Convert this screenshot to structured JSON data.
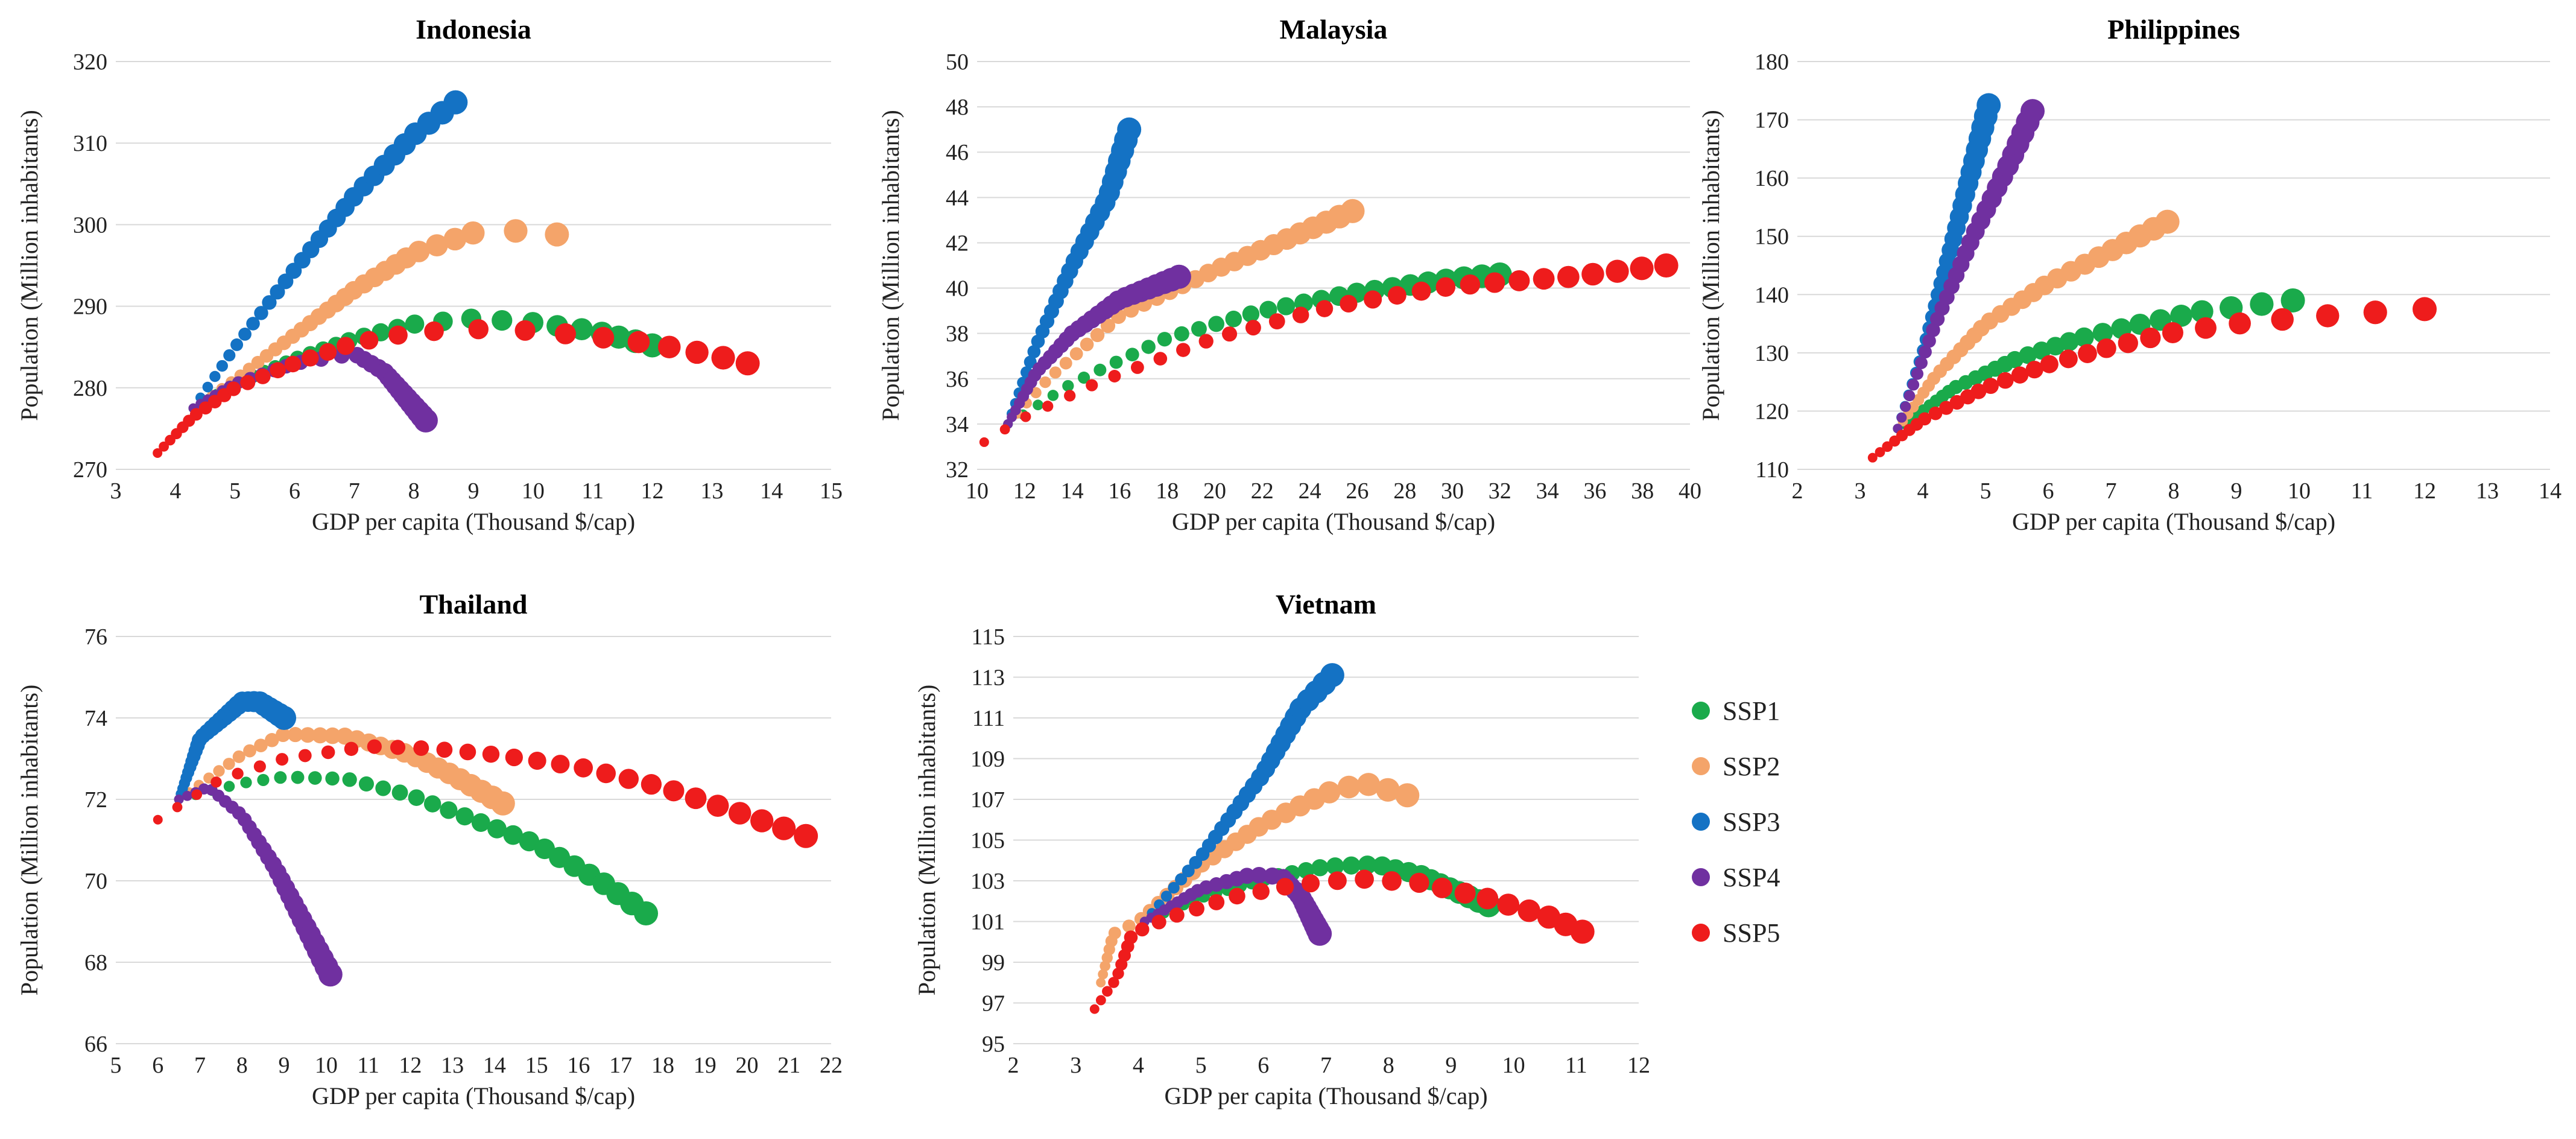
{
  "figure": {
    "series_names": [
      "SSP1",
      "SSP2",
      "SSP3",
      "SSP4",
      "SSP5"
    ],
    "colors": {
      "SSP1": "#1aaa4b",
      "SSP2": "#f4a46a",
      "SSP3": "#1472c4",
      "SSP4": "#7030a0",
      "SSP5": "#ee1c1c"
    }
  },
  "chart_data": [
    {
      "type": "scatter",
      "title": "Indonesia",
      "xlabel": "GDP per capita (Thousand $/cap)",
      "ylabel": "Population (Million inhabitants)",
      "xlim": [
        3,
        15
      ],
      "xticks": [
        3,
        4,
        5,
        6,
        7,
        8,
        9,
        10,
        11,
        12,
        13,
        14,
        15
      ],
      "ylim": [
        270,
        320
      ],
      "yticks": [
        270,
        280,
        290,
        300,
        310,
        320
      ],
      "series": [
        {
          "name": "SSP1",
          "start": [
            4.3,
            277.5
          ],
          "points": [
            [
              4.3,
              277.5
            ],
            [
              5,
              280.5
            ],
            [
              6,
              283.5
            ],
            [
              7,
              286
            ],
            [
              8,
              287.8
            ],
            [
              9,
              288.5
            ],
            [
              10,
              288
            ],
            [
              11,
              287
            ],
            [
              12,
              285.2
            ]
          ]
        },
        {
          "name": "SSP2",
          "start": [
            4.3,
            277.5
          ],
          "points": [
            [
              4.3,
              277.5
            ],
            [
              5,
              281
            ],
            [
              6,
              286.5
            ],
            [
              7,
              292
            ],
            [
              8,
              296.5
            ],
            [
              9,
              299
            ],
            [
              9.6,
              299.3
            ],
            [
              10.4,
              298.8
            ]
          ]
        },
        {
          "name": "SSP3",
          "start": [
            4.3,
            277.5
          ],
          "points": [
            [
              4.3,
              277.5
            ],
            [
              5,
              285
            ],
            [
              6,
              294.5
            ],
            [
              7,
              303.5
            ],
            [
              8,
              311
            ],
            [
              8.7,
              315
            ]
          ]
        },
        {
          "name": "SSP4",
          "start": [
            4.3,
            277.5
          ],
          "points": [
            [
              4.3,
              277.5
            ],
            [
              5,
              280.5
            ],
            [
              6,
              283
            ],
            [
              7,
              284.2
            ],
            [
              7.5,
              282
            ],
            [
              8.2,
              276
            ]
          ]
        },
        {
          "name": "SSP5",
          "start": [
            3.7,
            272
          ],
          "points": [
            [
              3.7,
              272
            ],
            [
              4.3,
              276.5
            ],
            [
              5,
              280
            ],
            [
              6,
              283
            ],
            [
              7,
              285.5
            ],
            [
              8,
              286.8
            ],
            [
              9,
              287.2
            ],
            [
              10,
              287
            ],
            [
              11,
              286.3
            ],
            [
              12,
              285.4
            ],
            [
              13,
              284
            ],
            [
              13.6,
              283
            ]
          ]
        }
      ]
    },
    {
      "type": "scatter",
      "title": "Malaysia",
      "xlabel": "GDP per capita (Thousand $/cap)",
      "ylabel": "Population (Million inhabitants)",
      "xlim": [
        10,
        40
      ],
      "xticks": [
        10,
        12,
        14,
        16,
        18,
        20,
        22,
        24,
        26,
        28,
        30,
        32,
        34,
        36,
        38,
        40
      ],
      "ylim": [
        32,
        50
      ],
      "yticks": [
        32,
        34,
        36,
        38,
        40,
        42,
        44,
        46,
        48,
        50
      ],
      "series": [
        {
          "name": "SSP1",
          "start": [
            11.3,
            34
          ],
          "points": [
            [
              11.3,
              34
            ],
            [
              14,
              35.8
            ],
            [
              18,
              37.8
            ],
            [
              22,
              39
            ],
            [
              26,
              39.8
            ],
            [
              30,
              40.4
            ],
            [
              32,
              40.6
            ]
          ]
        },
        {
          "name": "SSP2",
          "start": [
            11.3,
            34
          ],
          "points": [
            [
              11.3,
              34
            ],
            [
              13,
              36
            ],
            [
              16,
              38.8
            ],
            [
              20,
              40.8
            ],
            [
              24,
              42.6
            ],
            [
              25.8,
              43.4
            ]
          ]
        },
        {
          "name": "SSP3",
          "start": [
            11.3,
            34
          ],
          "points": [
            [
              11.3,
              34
            ],
            [
              12.5,
              37.5
            ],
            [
              14,
              41
            ],
            [
              15.5,
              44
            ],
            [
              16.4,
              47
            ]
          ]
        },
        {
          "name": "SSP4",
          "start": [
            11.3,
            34
          ],
          "points": [
            [
              11.3,
              34
            ],
            [
              12.5,
              36.3
            ],
            [
              14,
              38
            ],
            [
              16,
              39.5
            ],
            [
              18.5,
              40.5
            ]
          ]
        },
        {
          "name": "SSP5",
          "start": [
            10.3,
            33.2
          ],
          "points": [
            [
              10.3,
              33.2
            ],
            [
              12,
              34.3
            ],
            [
              15,
              35.8
            ],
            [
              20,
              37.8
            ],
            [
              25,
              39.2
            ],
            [
              30,
              40.1
            ],
            [
              35,
              40.5
            ],
            [
              39,
              41
            ]
          ]
        }
      ]
    },
    {
      "type": "scatter",
      "title": "Philippines",
      "xlabel": "GDP per capita (Thousand $/cap)",
      "ylabel": "Population (Million inhabitants)",
      "xlim": [
        2,
        14
      ],
      "xticks": [
        2,
        3,
        4,
        5,
        6,
        7,
        8,
        9,
        10,
        11,
        12,
        13,
        14
      ],
      "ylim": [
        110,
        180
      ],
      "yticks": [
        110,
        120,
        130,
        140,
        150,
        160,
        170,
        180
      ],
      "series": [
        {
          "name": "SSP1",
          "start": [
            3.6,
            117
          ],
          "points": [
            [
              3.6,
              117
            ],
            [
              4.5,
              124
            ],
            [
              5.5,
              129
            ],
            [
              6.5,
              132.5
            ],
            [
              7.5,
              135
            ],
            [
              8.5,
              137.2
            ],
            [
              9.5,
              138.5
            ],
            [
              9.9,
              139
            ]
          ]
        },
        {
          "name": "SSP2",
          "start": [
            3.6,
            117
          ],
          "points": [
            [
              3.6,
              117
            ],
            [
              4.2,
              126
            ],
            [
              5,
              135
            ],
            [
              6,
              142
            ],
            [
              7,
              147.5
            ],
            [
              7.9,
              152.5
            ]
          ]
        },
        {
          "name": "SSP3",
          "start": [
            3.6,
            117
          ],
          "points": [
            [
              3.6,
              117
            ],
            [
              4,
              130
            ],
            [
              4.5,
              150
            ],
            [
              5.05,
              172.5
            ]
          ]
        },
        {
          "name": "SSP4",
          "start": [
            3.6,
            117
          ],
          "points": [
            [
              3.6,
              117
            ],
            [
              4.2,
              135
            ],
            [
              4.8,
              150
            ],
            [
              5.4,
              163
            ],
            [
              5.75,
              171.5
            ]
          ]
        },
        {
          "name": "SSP5",
          "start": [
            3.2,
            112
          ],
          "points": [
            [
              3.2,
              112
            ],
            [
              4,
              118.5
            ],
            [
              5,
              124
            ],
            [
              6,
              128
            ],
            [
              7,
              131
            ],
            [
              8,
              133.5
            ],
            [
              9,
              135
            ],
            [
              10,
              136
            ],
            [
              11,
              136.8
            ],
            [
              12,
              137.5
            ]
          ]
        }
      ]
    },
    {
      "type": "scatter",
      "title": "Thailand",
      "xlabel": "GDP per capita (Thousand $/cap)",
      "ylabel": "Population (Million inhabitants)",
      "xlim": [
        5,
        22
      ],
      "xticks": [
        5,
        6,
        7,
        8,
        9,
        10,
        11,
        12,
        13,
        14,
        15,
        16,
        17,
        18,
        19,
        20,
        21,
        22
      ],
      "ylim": [
        66,
        76
      ],
      "yticks": [
        66,
        68,
        70,
        72,
        74,
        76
      ],
      "series": [
        {
          "name": "SSP1",
          "start": [
            6.5,
            72
          ],
          "points": [
            [
              6.5,
              72
            ],
            [
              8,
              72.4
            ],
            [
              9,
              72.55
            ],
            [
              10.5,
              72.5
            ],
            [
              12,
              72.1
            ],
            [
              13.5,
              71.5
            ],
            [
              15,
              70.9
            ],
            [
              16.5,
              70
            ],
            [
              17.6,
              69.2
            ]
          ]
        },
        {
          "name": "SSP2",
          "start": [
            6.5,
            72
          ],
          "points": [
            [
              6.5,
              72
            ],
            [
              8,
              73.1
            ],
            [
              9,
              73.6
            ],
            [
              10.5,
              73.55
            ],
            [
              12,
              73.1
            ],
            [
              13,
              72.6
            ],
            [
              14.2,
              71.9
            ]
          ]
        },
        {
          "name": "SSP3",
          "start": [
            6.5,
            72
          ],
          "points": [
            [
              6.5,
              72
            ],
            [
              7,
              73.5
            ],
            [
              8,
              74.4
            ],
            [
              8.4,
              74.4
            ],
            [
              9,
              74
            ]
          ]
        },
        {
          "name": "SSP4",
          "start": [
            6.5,
            72
          ],
          "points": [
            [
              6.5,
              72
            ],
            [
              7.2,
              72.3
            ],
            [
              8,
              71.6
            ],
            [
              8.8,
              70.3
            ],
            [
              9.5,
              68.9
            ],
            [
              10.1,
              67.7
            ]
          ]
        },
        {
          "name": "SSP5",
          "start": [
            6,
            71.5
          ],
          "points": [
            [
              6,
              71.5
            ],
            [
              7.5,
              72.5
            ],
            [
              9,
              73
            ],
            [
              11,
              73.3
            ],
            [
              12.5,
              73.25
            ],
            [
              14,
              73.1
            ],
            [
              16,
              72.8
            ],
            [
              18,
              72.3
            ],
            [
              20,
              71.6
            ],
            [
              21.4,
              71.1
            ]
          ]
        }
      ]
    },
    {
      "type": "scatter",
      "title": "Vietnam",
      "xlabel": "GDP per capita (Thousand $/cap)",
      "ylabel": "Population (Million inhabitants)",
      "xlim": [
        2,
        12
      ],
      "xticks": [
        2,
        3,
        4,
        5,
        6,
        7,
        8,
        9,
        10,
        11,
        12
      ],
      "ylim": [
        95,
        115
      ],
      "yticks": [
        95,
        97,
        99,
        101,
        103,
        105,
        107,
        109,
        111,
        113,
        115
      ],
      "series": [
        {
          "name": "SSP1",
          "start": [
            4.1,
            101
          ],
          "points": [
            [
              4.1,
              101
            ],
            [
              5,
              102.2
            ],
            [
              6,
              103.1
            ],
            [
              7,
              103.7
            ],
            [
              7.8,
              103.8
            ],
            [
              8.5,
              103.3
            ],
            [
              9,
              102.6
            ],
            [
              9.6,
              101.8
            ]
          ]
        },
        {
          "name": "SSP2",
          "start": [
            3.4,
            98
          ],
          "points": [
            [
              3.4,
              98
            ],
            [
              3.6,
              100.4
            ],
            [
              4,
              101
            ],
            [
              5,
              103.8
            ],
            [
              6,
              105.8
            ],
            [
              7,
              107.3
            ],
            [
              7.6,
              107.8
            ],
            [
              8.3,
              107.2
            ]
          ]
        },
        {
          "name": "SSP3",
          "start": [
            4.1,
            101
          ],
          "points": [
            [
              4.1,
              101
            ],
            [
              5,
              104.2
            ],
            [
              6,
              108.3
            ],
            [
              6.6,
              111.5
            ],
            [
              7.1,
              113.1
            ]
          ]
        },
        {
          "name": "SSP4",
          "start": [
            4.1,
            101
          ],
          "points": [
            [
              4.1,
              101
            ],
            [
              5,
              102.6
            ],
            [
              5.8,
              103.3
            ],
            [
              6.3,
              103.2
            ],
            [
              6.6,
              102.2
            ],
            [
              6.9,
              100.4
            ]
          ]
        },
        {
          "name": "SSP5",
          "start": [
            3.3,
            96.7
          ],
          "points": [
            [
              3.3,
              96.7
            ],
            [
              3.65,
              98.2
            ],
            [
              3.9,
              100.4
            ],
            [
              4.5,
              101.2
            ],
            [
              5.5,
              102.2
            ],
            [
              6.5,
              102.8
            ],
            [
              7.5,
              103.1
            ],
            [
              8.5,
              102.9
            ],
            [
              9.5,
              102.2
            ],
            [
              10.5,
              101.3
            ],
            [
              11.1,
              100.5
            ]
          ]
        }
      ]
    }
  ]
}
